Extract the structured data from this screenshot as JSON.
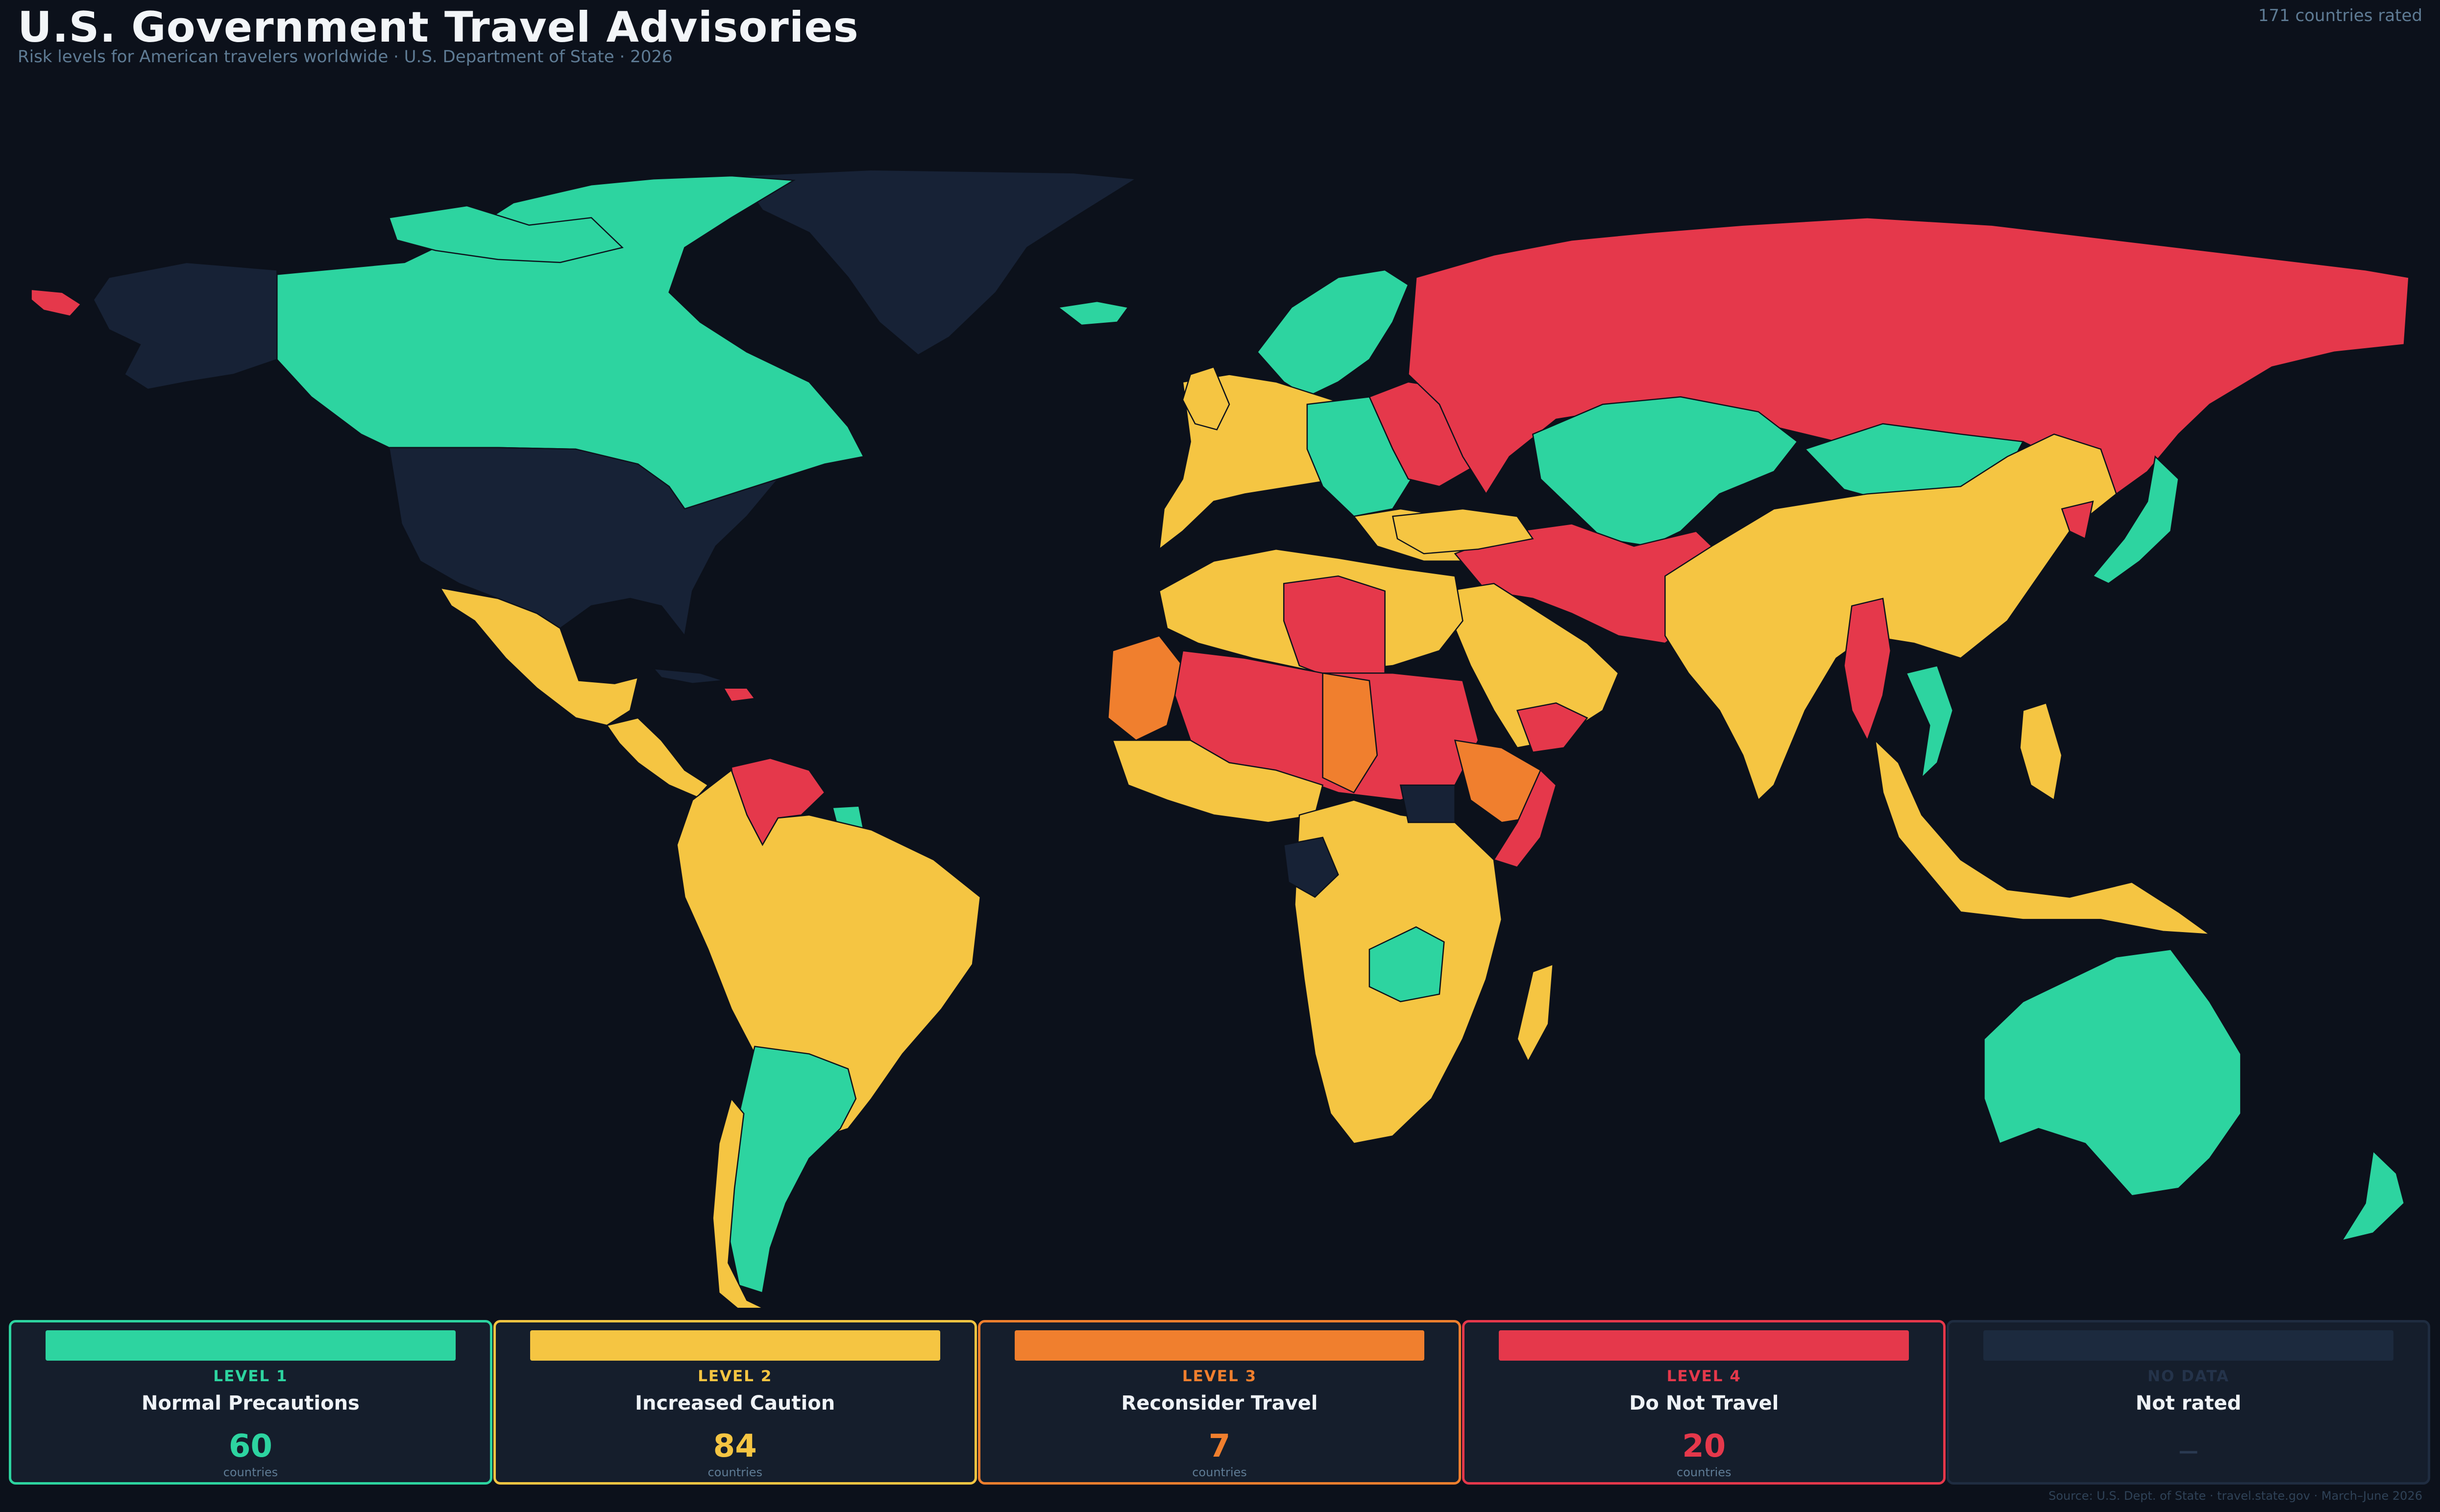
{
  "header": {
    "title": "U.S. Government Travel Advisories",
    "subtitle": "Risk levels for American travelers worldwide  ·  U.S. Department of State  ·  2026",
    "countries_rated": "171 countries rated"
  },
  "colors": {
    "background": "#0c111b",
    "level1": "#2dd4a0",
    "level2": "#f5c542",
    "level3": "#f07f2e",
    "level4": "#e5384b",
    "no_data": "#172236",
    "border": "#0c111b"
  },
  "legend": [
    {
      "level": "LEVEL 1",
      "name": "Normal Precautions",
      "count": "60",
      "unit": "countries",
      "color": "#2dd4a0"
    },
    {
      "level": "LEVEL 2",
      "name": "Increased Caution",
      "count": "84",
      "unit": "countries",
      "color": "#f5c542"
    },
    {
      "level": "LEVEL 3",
      "name": "Reconsider Travel",
      "count": "7",
      "unit": "countries",
      "color": "#f07f2e"
    },
    {
      "level": "LEVEL 4",
      "name": "Do Not Travel",
      "count": "20",
      "unit": "countries",
      "color": "#e5384b"
    },
    {
      "level": "NO DATA",
      "name": "Not rated",
      "count": "—",
      "unit": "",
      "color": "#1c2a3e"
    }
  ],
  "footer": {
    "source": "Source: U.S. Dept. of State · travel.state.gov · March–June 2026"
  }
}
